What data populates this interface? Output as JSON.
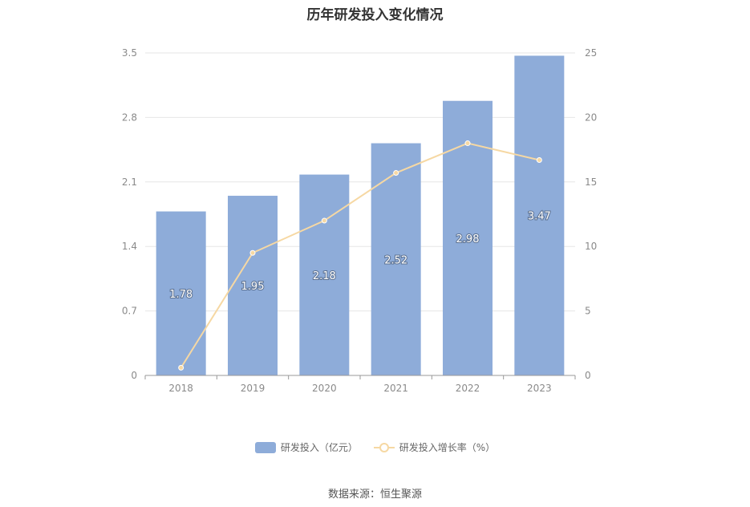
{
  "title": "历年研发投入变化情况",
  "source": "数据来源：恒生聚源",
  "colors": {
    "bar": "#8eacd9",
    "line": "#f6d8a3",
    "axis": "#999999",
    "grid": "#e6e6e6"
  },
  "legend": {
    "bar_label": "研发投入（亿元）",
    "line_label": "研发投入增长率（%）"
  },
  "chart_data": {
    "type": "bar",
    "categories": [
      "2018",
      "2019",
      "2020",
      "2021",
      "2022",
      "2023"
    ],
    "series": [
      {
        "name": "研发投入（亿元）",
        "type": "bar",
        "axis": "left",
        "values": [
          1.78,
          1.95,
          2.18,
          2.52,
          2.98,
          3.47
        ],
        "labels": [
          "1.78",
          "1.95",
          "2.18",
          "2.52",
          "2.98",
          "3.47"
        ]
      },
      {
        "name": "研发投入增长率（%）",
        "type": "line",
        "axis": "right",
        "values": [
          0.6,
          9.5,
          12.0,
          15.7,
          18.0,
          16.7
        ]
      }
    ],
    "y_left": {
      "min": 0,
      "max": 3.5,
      "ticks": [
        "0",
        "0.7",
        "1.4",
        "2.1",
        "2.8",
        "3.5"
      ]
    },
    "y_right": {
      "min": 0,
      "max": 25,
      "ticks": [
        "0",
        "5",
        "10",
        "15",
        "20",
        "25"
      ]
    },
    "grid": true,
    "legend_position": "bottom"
  }
}
